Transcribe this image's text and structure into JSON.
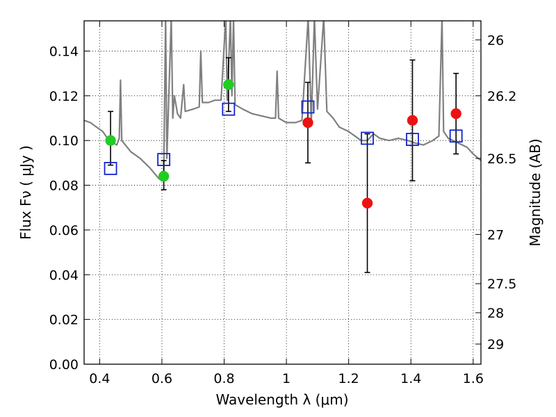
{
  "chart_data": {
    "type": "scatter",
    "xlabel": "Wavelength  λ (μm)",
    "ylabel": "Flux  Fν  ( μJy )",
    "ylabel_right": "Magnitude (AB)",
    "xlim": [
      0.35,
      1.625
    ],
    "ylim": [
      0.0,
      0.1535
    ],
    "x_ticks": [
      0.4,
      0.6,
      0.8,
      1.0,
      1.2,
      1.4,
      1.6
    ],
    "x_tick_labels": [
      "0.4",
      "0.6",
      "0.8",
      "1",
      "1.2",
      "1.4",
      "1.6"
    ],
    "y_ticks": [
      0.0,
      0.02,
      0.04,
      0.06,
      0.08,
      0.1,
      0.12,
      0.14
    ],
    "y_tick_labels": [
      "0.00",
      "0.02",
      "0.04",
      "0.06",
      "0.08",
      "0.10",
      "0.12",
      "0.14"
    ],
    "right_ticks": [
      {
        "flux": 0.145,
        "label": "26"
      },
      {
        "flux": 0.12,
        "label": "26.2"
      },
      {
        "flux": 0.092,
        "label": "26.5"
      },
      {
        "flux": 0.058,
        "label": "27"
      },
      {
        "flux": 0.036,
        "label": "27.5"
      },
      {
        "flux": 0.023,
        "label": "28"
      },
      {
        "flux": 0.009,
        "label": "29"
      }
    ],
    "grid": true,
    "colors": {
      "green": "#22cc22",
      "red": "#ee1111",
      "square": "#1122cc",
      "spectrum": "#808080",
      "errorbar": "#000000"
    },
    "series": [
      {
        "kind": "observed-green",
        "points": [
          {
            "x": 0.435,
            "y": 0.1,
            "lo": 0.089,
            "hi": 0.113
          },
          {
            "x": 0.606,
            "y": 0.084,
            "lo": 0.078,
            "hi": 0.091
          },
          {
            "x": 0.814,
            "y": 0.125,
            "lo": 0.113,
            "hi": 0.137
          }
        ]
      },
      {
        "kind": "observed-red",
        "points": [
          {
            "x": 1.069,
            "y": 0.108,
            "lo": 0.09,
            "hi": 0.126
          },
          {
            "x": 1.26,
            "y": 0.072,
            "lo": 0.041,
            "hi": 0.103
          },
          {
            "x": 1.405,
            "y": 0.109,
            "lo": 0.082,
            "hi": 0.136
          },
          {
            "x": 1.545,
            "y": 0.112,
            "lo": 0.094,
            "hi": 0.13
          }
        ]
      },
      {
        "kind": "model-squares",
        "points": [
          {
            "x": 0.435,
            "y": 0.0875
          },
          {
            "x": 0.606,
            "y": 0.0915
          },
          {
            "x": 0.814,
            "y": 0.114
          },
          {
            "x": 1.069,
            "y": 0.115
          },
          {
            "x": 1.26,
            "y": 0.101
          },
          {
            "x": 1.405,
            "y": 0.1005
          },
          {
            "x": 1.545,
            "y": 0.102
          }
        ]
      }
    ],
    "spectrum": [
      [
        0.35,
        0.109
      ],
      [
        0.37,
        0.108
      ],
      [
        0.39,
        0.106
      ],
      [
        0.41,
        0.104
      ],
      [
        0.43,
        0.1
      ],
      [
        0.455,
        0.098
      ],
      [
        0.463,
        0.101
      ],
      [
        0.467,
        0.127
      ],
      [
        0.471,
        0.1
      ],
      [
        0.5,
        0.095
      ],
      [
        0.53,
        0.092
      ],
      [
        0.56,
        0.088
      ],
      [
        0.59,
        0.083
      ],
      [
        0.6,
        0.082
      ],
      [
        0.606,
        0.086
      ],
      [
        0.612,
        0.155
      ],
      [
        0.616,
        0.092
      ],
      [
        0.63,
        0.155
      ],
      [
        0.635,
        0.11
      ],
      [
        0.64,
        0.12
      ],
      [
        0.65,
        0.112
      ],
      [
        0.66,
        0.11
      ],
      [
        0.67,
        0.125
      ],
      [
        0.675,
        0.113
      ],
      [
        0.7,
        0.114
      ],
      [
        0.72,
        0.115
      ],
      [
        0.725,
        0.14
      ],
      [
        0.73,
        0.117
      ],
      [
        0.75,
        0.117
      ],
      [
        0.77,
        0.118
      ],
      [
        0.79,
        0.118
      ],
      [
        0.805,
        0.155
      ],
      [
        0.81,
        0.118
      ],
      [
        0.82,
        0.155
      ],
      [
        0.825,
        0.12
      ],
      [
        0.83,
        0.155
      ],
      [
        0.835,
        0.116
      ],
      [
        0.86,
        0.114
      ],
      [
        0.89,
        0.112
      ],
      [
        0.92,
        0.111
      ],
      [
        0.95,
        0.11
      ],
      [
        0.965,
        0.11
      ],
      [
        0.97,
        0.131
      ],
      [
        0.975,
        0.11
      ],
      [
        1.0,
        0.108
      ],
      [
        1.03,
        0.108
      ],
      [
        1.05,
        0.109
      ],
      [
        1.07,
        0.155
      ],
      [
        1.08,
        0.108
      ],
      [
        1.09,
        0.155
      ],
      [
        1.1,
        0.114
      ],
      [
        1.12,
        0.155
      ],
      [
        1.13,
        0.113
      ],
      [
        1.15,
        0.11
      ],
      [
        1.17,
        0.106
      ],
      [
        1.2,
        0.104
      ],
      [
        1.22,
        0.102
      ],
      [
        1.24,
        0.1
      ],
      [
        1.26,
        0.1
      ],
      [
        1.28,
        0.103
      ],
      [
        1.3,
        0.101
      ],
      [
        1.33,
        0.1
      ],
      [
        1.36,
        0.101
      ],
      [
        1.39,
        0.1
      ],
      [
        1.41,
        0.099
      ],
      [
        1.44,
        0.098
      ],
      [
        1.47,
        0.1
      ],
      [
        1.49,
        0.102
      ],
      [
        1.5,
        0.155
      ],
      [
        1.505,
        0.104
      ],
      [
        1.52,
        0.101
      ],
      [
        1.55,
        0.099
      ],
      [
        1.58,
        0.097
      ],
      [
        1.6,
        0.094
      ],
      [
        1.625,
        0.091
      ]
    ]
  }
}
